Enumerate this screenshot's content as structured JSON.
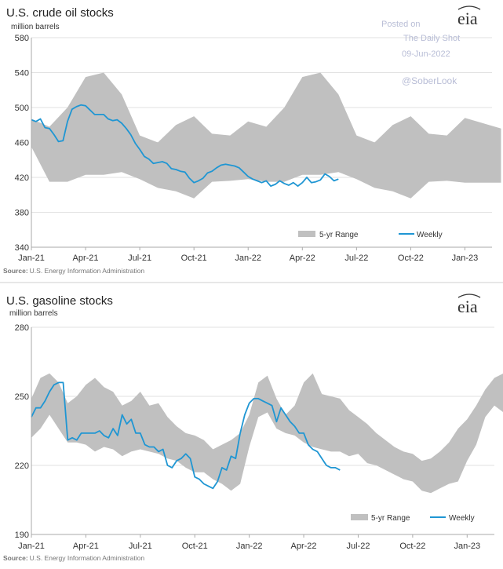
{
  "posted": {
    "line1": "Posted on",
    "line2": "The Daily Shot",
    "line3": "09-Jun-2022",
    "handle": "@SoberLook"
  },
  "logo_text": "eia",
  "source_prefix": "Source:",
  "source_text": "U.S. Energy Information Administration",
  "colors": {
    "range": "#c0c0c0",
    "weekly": "#1f96d3",
    "grid": "#e2e2e2",
    "frame": "#aaaaaa"
  },
  "chart_data": [
    {
      "type": "area",
      "title": "U.S. crude oil stocks",
      "unit": "million barrels",
      "ylim": [
        340,
        580
      ],
      "yticks": [
        340,
        380,
        420,
        460,
        500,
        540,
        580
      ],
      "x_start": "2021-01",
      "x_end": "2023-02",
      "xticks": [
        {
          "label": "Jan-21",
          "m": 0
        },
        {
          "label": "Apr-21",
          "m": 3
        },
        {
          "label": "Jul-21",
          "m": 6
        },
        {
          "label": "Oct-21",
          "m": 9
        },
        {
          "label": "Jan-22",
          "m": 12
        },
        {
          "label": "Apr-22",
          "m": 15
        },
        {
          "label": "Jul-22",
          "m": 18
        },
        {
          "label": "Oct-22",
          "m": 21
        },
        {
          "label": "Jan-23",
          "m": 24
        }
      ],
      "legend": [
        "5-yr Range",
        "Weekly"
      ],
      "grid": true,
      "range_series": {
        "name": "5-yr Range",
        "x_month": [
          0,
          1,
          2,
          3,
          4,
          5,
          6,
          7,
          8,
          9,
          10,
          11,
          12,
          13,
          14,
          15,
          16,
          17,
          18,
          19,
          20,
          21,
          22,
          23,
          24,
          25,
          26
        ],
        "low": [
          455,
          415,
          415,
          423,
          423,
          426,
          418,
          408,
          404,
          396,
          415,
          416,
          418,
          415,
          415,
          423,
          423,
          426,
          418,
          408,
          404,
          396,
          415,
          416,
          414,
          414,
          414
        ],
        "high": [
          487,
          478,
          500,
          535,
          540,
          515,
          468,
          460,
          480,
          490,
          470,
          468,
          484,
          478,
          500,
          535,
          540,
          515,
          468,
          460,
          480,
          490,
          470,
          468,
          488,
          482,
          476
        ]
      },
      "weekly_series": {
        "name": "Weekly",
        "x_month": [
          0,
          0.25,
          0.5,
          0.75,
          1.0,
          1.25,
          1.5,
          1.75,
          2.0,
          2.25,
          2.5,
          2.75,
          3.0,
          3.25,
          3.5,
          3.75,
          4.0,
          4.25,
          4.5,
          4.75,
          5.0,
          5.25,
          5.5,
          5.75,
          6.0,
          6.25,
          6.5,
          6.75,
          7.0,
          7.25,
          7.5,
          7.75,
          8.0,
          8.25,
          8.5,
          8.75,
          9.0,
          9.25,
          9.5,
          9.75,
          10.0,
          10.25,
          10.5,
          10.75,
          11.0,
          11.25,
          11.5,
          11.75,
          12.0,
          12.25,
          12.5,
          12.75,
          13.0,
          13.25,
          13.5,
          13.75,
          14.0,
          14.25,
          14.5,
          14.75,
          15.0,
          15.25,
          15.5,
          15.75,
          16.0,
          16.25,
          16.5,
          16.75,
          17.0
        ],
        "values": [
          486,
          484,
          487,
          477,
          476,
          469,
          461,
          462,
          484,
          498,
          501,
          503,
          502,
          497,
          492,
          492,
          492,
          487,
          485,
          486,
          482,
          476,
          469,
          459,
          452,
          444,
          441,
          436,
          437,
          438,
          436,
          430,
          429,
          427,
          426,
          419,
          414,
          416,
          419,
          425,
          427,
          431,
          434,
          435,
          434,
          433,
          431,
          426,
          421,
          418,
          416,
          414,
          416,
          410,
          412,
          416,
          413,
          411,
          414,
          410,
          414,
          420,
          414,
          415,
          417,
          424,
          421,
          416,
          418
        ]
      }
    },
    {
      "type": "area",
      "title": "U.S. gasoline stocks",
      "unit": "million barrels",
      "ylim": [
        190,
        280
      ],
      "yticks": [
        190,
        220,
        250,
        280
      ],
      "x_start": "2021-01",
      "x_end": "2023-02",
      "xticks": [
        {
          "label": "Jan-21",
          "m": 0
        },
        {
          "label": "Apr-21",
          "m": 3
        },
        {
          "label": "Jul-21",
          "m": 6
        },
        {
          "label": "Oct-21",
          "m": 9
        },
        {
          "label": "Jan-22",
          "m": 12
        },
        {
          "label": "Apr-22",
          "m": 15
        },
        {
          "label": "Jul-22",
          "m": 18
        },
        {
          "label": "Oct-22",
          "m": 21
        },
        {
          "label": "Jan-23",
          "m": 24
        }
      ],
      "legend": [
        "5-yr Range",
        "Weekly"
      ],
      "grid": true,
      "range_series": {
        "name": "5-yr Range",
        "x_month": [
          0,
          0.5,
          1,
          1.5,
          2,
          2.5,
          3,
          3.5,
          4,
          4.5,
          5,
          5.5,
          6,
          6.5,
          7,
          7.5,
          8,
          8.5,
          9,
          9.5,
          10,
          10.5,
          11,
          11.5,
          12,
          12.5,
          13,
          13.5,
          14,
          14.5,
          15,
          15.5,
          16,
          16.5,
          17,
          17.5,
          18,
          18.5,
          19,
          19.5,
          20,
          20.5,
          21,
          21.5,
          22,
          22.5,
          23,
          23.5,
          24,
          24.5,
          25,
          25.5,
          26
        ],
        "low": [
          232,
          236,
          242,
          236,
          230,
          230,
          229,
          226,
          228,
          227,
          224,
          226,
          227,
          226,
          225,
          223,
          222,
          219,
          217,
          217,
          214,
          212,
          209,
          212,
          228,
          241,
          243,
          236,
          234,
          233,
          230,
          228,
          227,
          226,
          226,
          224,
          225,
          221,
          220,
          218,
          216,
          214,
          213,
          209,
          208,
          210,
          212,
          213,
          222,
          229,
          241,
          246,
          243
        ],
        "high": [
          249,
          258,
          260,
          256,
          247,
          250,
          255,
          258,
          254,
          252,
          246,
          248,
          252,
          246,
          247,
          241,
          237,
          234,
          233,
          231,
          227,
          229,
          231,
          234,
          242,
          256,
          259,
          249,
          242,
          246,
          256,
          260,
          251,
          250,
          249,
          244,
          241,
          238,
          234,
          231,
          228,
          226,
          225,
          222,
          223,
          226,
          230,
          236,
          240,
          246,
          253,
          258,
          260
        ]
      },
      "weekly_series": {
        "name": "Weekly",
        "x_month": [
          0,
          0.25,
          0.5,
          0.75,
          1.0,
          1.25,
          1.5,
          1.75,
          2.0,
          2.25,
          2.5,
          2.75,
          3.0,
          3.25,
          3.5,
          3.75,
          4.0,
          4.25,
          4.5,
          4.75,
          5.0,
          5.25,
          5.5,
          5.75,
          6.0,
          6.25,
          6.5,
          6.75,
          7.0,
          7.25,
          7.5,
          7.75,
          8.0,
          8.25,
          8.5,
          8.75,
          9.0,
          9.25,
          9.5,
          9.75,
          10.0,
          10.25,
          10.5,
          10.75,
          11.0,
          11.25,
          11.5,
          11.75,
          12.0,
          12.25,
          12.5,
          12.75,
          13.0,
          13.25,
          13.5,
          13.75,
          14.0,
          14.25,
          14.5,
          14.75,
          15.0,
          15.25,
          15.5,
          15.75,
          16.0,
          16.25,
          16.5,
          16.75,
          17.0
        ],
        "values": [
          241,
          245,
          245,
          248,
          252,
          255,
          256,
          256,
          231,
          232,
          231,
          234,
          234,
          234,
          234,
          235,
          233,
          232,
          236,
          233,
          242,
          238,
          240,
          234,
          234,
          229,
          228,
          228,
          226,
          227,
          220,
          219,
          222,
          223,
          225,
          223,
          215,
          214,
          212,
          211,
          210,
          213,
          219,
          218,
          224,
          223,
          234,
          242,
          247,
          249,
          249,
          248,
          247,
          246,
          239,
          245,
          242,
          239,
          237,
          234,
          234,
          229,
          227,
          226,
          223,
          220,
          219,
          219,
          218
        ]
      }
    }
  ]
}
